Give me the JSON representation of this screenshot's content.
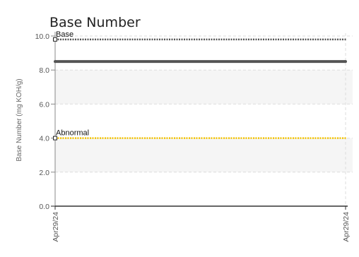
{
  "chart_data": {
    "type": "line",
    "title": "Base Number",
    "xlabel": "",
    "ylabel": "Base Number (mg KOH/g)",
    "x": [
      "Apr29/24",
      "Apr29/24"
    ],
    "ylim": [
      0,
      10
    ],
    "yticks": [
      "0.0",
      "2.0",
      "4.0",
      "6.0",
      "8.0",
      "10.0"
    ],
    "grid": true,
    "bands": [
      {
        "from": 2,
        "to": 4,
        "color": "#f5f5f5"
      },
      {
        "from": 6,
        "to": 8,
        "color": "#f5f5f5"
      }
    ],
    "series": [
      {
        "values": [
          8.5,
          8.5
        ],
        "color": "#555555",
        "style": "solid"
      }
    ],
    "reference_lines": [
      {
        "name": "Base",
        "value": 9.8,
        "color": "#555555",
        "style": "dotted"
      },
      {
        "name": "Abnormal",
        "value": 4.0,
        "color": "#f5c400",
        "style": "dotted"
      }
    ]
  }
}
